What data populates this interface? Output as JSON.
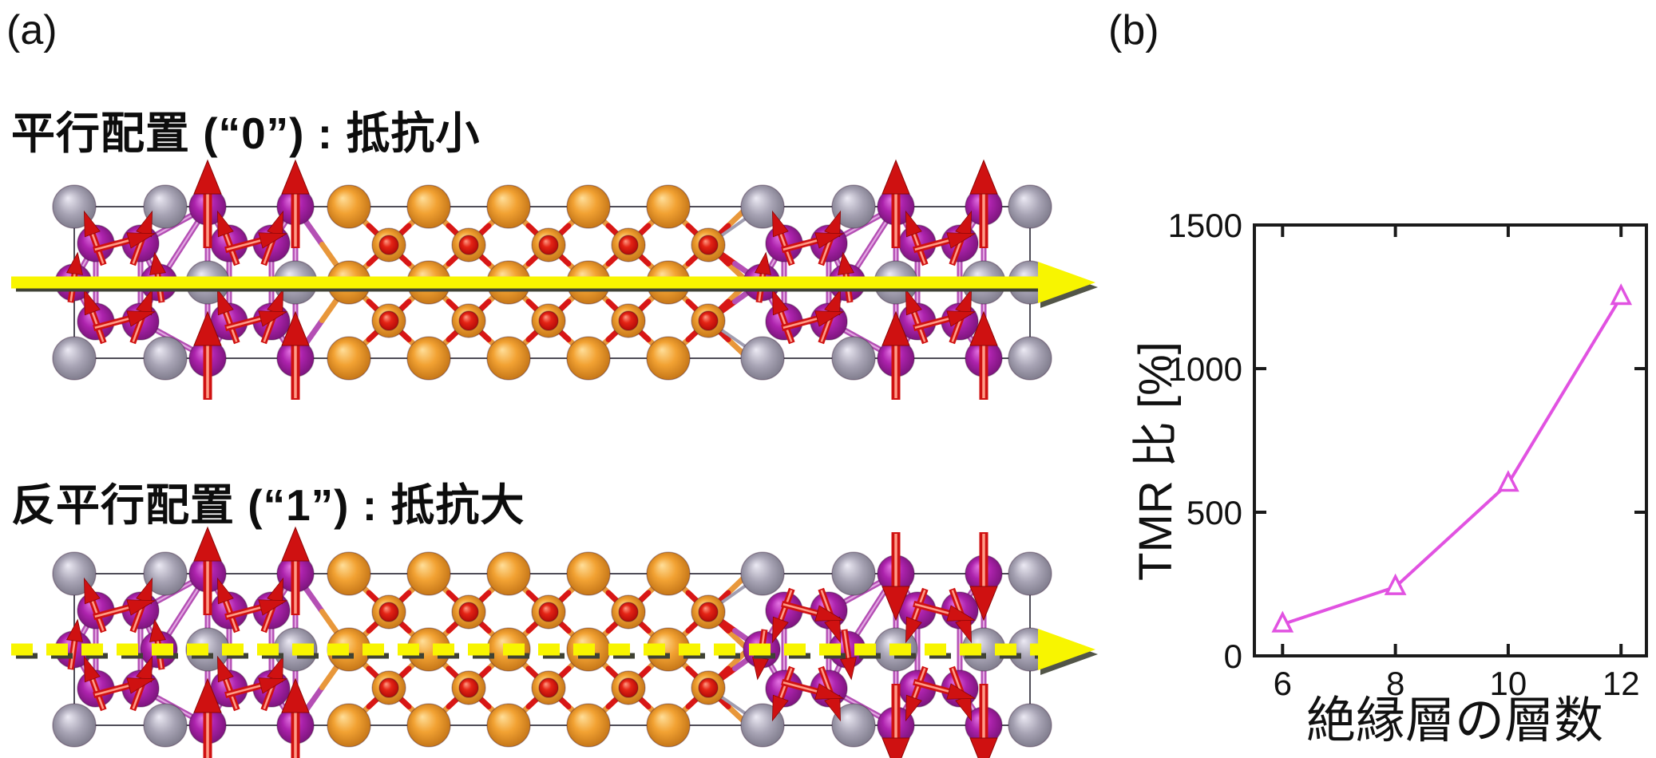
{
  "page": {
    "background": "#ffffff"
  },
  "panel_a": {
    "label": "(a)",
    "configurations": [
      {
        "id": "parallel",
        "title": "平行配置 (“0”) : 抵抗小",
        "bit": "0",
        "left_spin": "up",
        "right_spin": "up",
        "current_arrow": "solid"
      },
      {
        "id": "antiparallel",
        "title": "反平行配置 (“1”) : 抵抗大",
        "bit": "1",
        "left_spin": "up",
        "right_spin": "down",
        "current_arrow": "dashed"
      }
    ],
    "colors": {
      "magnetic_atom": "#a824a8",
      "electrode_atom": "#9e9aac",
      "insulator_atom": "#ef9d30",
      "oxygen_atom": "#e0180e",
      "spin_arrow": "#d01111",
      "current_arrow": "#f8f500",
      "cell_outline": "#4f4d58"
    }
  },
  "panel_b": {
    "label": "(b)"
  },
  "chart_data": {
    "type": "line",
    "title": "",
    "xlabel": "絶縁層の層数",
    "ylabel": "TMR 比 [%]",
    "x": [
      6,
      8,
      10,
      12
    ],
    "series": [
      {
        "name": "TMR比",
        "values": [
          110,
          240,
          600,
          1250
        ],
        "color": "#e152e1",
        "marker": "open-triangle"
      }
    ],
    "xticks": [
      6,
      8,
      10,
      12
    ],
    "yticks": [
      0,
      500,
      1000,
      1500
    ],
    "xlim": [
      5.5,
      12.45
    ],
    "ylim": [
      0,
      1500
    ],
    "grid": false,
    "legend_position": "none"
  }
}
